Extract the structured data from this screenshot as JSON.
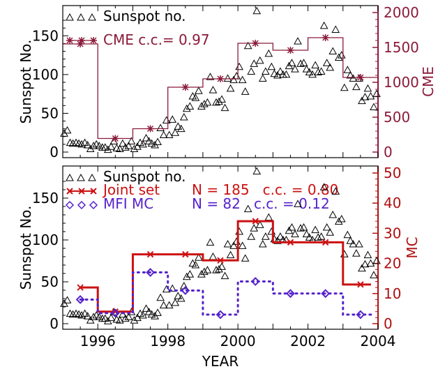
{
  "chart_data": [
    {
      "type": "line",
      "xlim": [
        1995,
        2004
      ],
      "ylim": [
        0,
        180
      ],
      "y2lim": [
        0,
        2000
      ],
      "ylabel": "Sunspot No.",
      "y2label": "CME",
      "yticks": [
        "0",
        "50",
        "100",
        "150"
      ],
      "y2ticks": [
        "0",
        "500",
        "1000",
        "1500",
        "2000"
      ],
      "legend": [
        {
          "label": "Sunspot no.",
          "color": "#000000"
        },
        {
          "label": "CME c.c.= 0.97",
          "color": "#8b1a3a"
        }
      ],
      "series": [
        {
          "name": "Sunspot no.",
          "marker": "triangle",
          "x": [
            1995.04,
            1995.13,
            1995.21,
            1995.29,
            1995.38,
            1995.46,
            1995.54,
            1995.63,
            1995.71,
            1995.79,
            1995.88,
            1995.96,
            1996.04,
            1996.13,
            1996.21,
            1996.29,
            1996.38,
            1996.46,
            1996.54,
            1996.63,
            1996.71,
            1996.79,
            1996.88,
            1996.96,
            1997.04,
            1997.13,
            1997.21,
            1997.29,
            1997.38,
            1997.46,
            1997.54,
            1997.63,
            1997.71,
            1997.79,
            1997.88,
            1997.96,
            1998.04,
            1998.13,
            1998.21,
            1998.29,
            1998.38,
            1998.46,
            1998.54,
            1998.63,
            1998.71,
            1998.79,
            1998.88,
            1998.96,
            1999.04,
            1999.13,
            1999.21,
            1999.29,
            1999.38,
            1999.46,
            1999.54,
            1999.63,
            1999.71,
            1999.79,
            1999.88,
            1999.96,
            2000.04,
            2000.13,
            2000.21,
            2000.29,
            2000.38,
            2000.46,
            2000.54,
            2000.63,
            2000.71,
            2000.79,
            2000.88,
            2000.96,
            2001.04,
            2001.13,
            2001.21,
            2001.29,
            2001.38,
            2001.46,
            2001.54,
            2001.63,
            2001.71,
            2001.79,
            2001.88,
            2001.96,
            2002.04,
            2002.13,
            2002.21,
            2002.29,
            2002.38,
            2002.46,
            2002.54,
            2002.63,
            2002.71,
            2002.79,
            2002.88,
            2002.96,
            2003.04,
            2003.13,
            2003.21,
            2003.29,
            2003.38,
            2003.46,
            2003.54,
            2003.63,
            2003.71,
            2003.79,
            2003.88,
            2003.96
          ],
          "y": [
            24,
            28,
            12,
            11,
            12,
            11,
            10,
            12,
            9,
            4,
            8,
            10,
            8,
            6,
            6,
            3,
            7,
            14,
            5,
            4,
            11,
            6,
            8,
            14,
            4,
            7,
            12,
            10,
            18,
            14,
            11,
            9,
            13,
            31,
            22,
            41,
            22,
            42,
            25,
            33,
            30,
            45,
            56,
            59,
            72,
            70,
            79,
            59,
            62,
            64,
            97,
            80,
            64,
            65,
            68,
            57,
            95,
            82,
            93,
            98,
            110,
            93,
            78,
            137,
            104,
            114,
            182,
            118,
            95,
            104,
            127,
            110,
            101,
            99,
            104,
            100,
            100,
            111,
            115,
            107,
            143,
            114,
            115,
            107,
            103,
            100,
            112,
            103,
            104,
            163,
            115,
            109,
            130,
            158,
            122,
            125,
            83,
            106,
            99,
            95,
            84,
            95,
            66,
            71,
            82,
            72,
            58,
            75
          ]
        },
        {
          "name": "CME",
          "marker": "asterisk",
          "x": [
            1995.5,
            1996.5,
            1997.5,
            1998.5,
            1999.5,
            2000.5,
            2001.5,
            2002.5,
            2003.5
          ],
          "y": [
            1550,
            195,
            335,
            930,
            1050,
            1560,
            1460,
            1640,
            1070
          ],
          "step_edges": [
            1995,
            1996,
            1997,
            1998,
            1999,
            2000,
            2001,
            2002,
            2003,
            2004
          ],
          "color": "#8b1a3a"
        }
      ]
    },
    {
      "type": "line",
      "xlim": [
        1995,
        2004
      ],
      "ylim": [
        0,
        180
      ],
      "y2lim": [
        0,
        50
      ],
      "xlabel": "YEAR",
      "ylabel": "Sunspot No.",
      "y2label": "MC",
      "xticks": [
        "1996",
        "1998",
        "2000",
        "2002",
        "2004"
      ],
      "yticks": [
        "0",
        "50",
        "100",
        "150"
      ],
      "y2ticks": [
        "0",
        "10",
        "20",
        "30",
        "40",
        "50"
      ],
      "legend": [
        {
          "label": "Sunspot no.",
          "color": "#000000"
        },
        {
          "label": "Joint set",
          "stats": "N = 185   c.c. = 0.80",
          "color": "#cc1111"
        },
        {
          "label": "MFI MC",
          "stats": "N = 82   c.c. = 0.12",
          "color": "#5522cc"
        }
      ],
      "series": [
        {
          "name": "Sunspot no.",
          "marker": "triangle",
          "same_as_top_panel": true
        },
        {
          "name": "Joint set",
          "marker": "x",
          "color": "#cc1111",
          "x": [
            1995.5,
            1996.5,
            1997.5,
            1998.5,
            1999.5,
            2000.5,
            2001.5,
            2002.5,
            2003.5
          ],
          "y": [
            12,
            4,
            23,
            23,
            21,
            34,
            27,
            27,
            13
          ],
          "step_edges": [
            1995.5,
            1996,
            1997,
            1998,
            1999,
            2000,
            2001,
            2002,
            2003,
            2003.8
          ]
        },
        {
          "name": "MFI MC",
          "marker": "diamond",
          "color": "#5522cc",
          "x": [
            1995.5,
            1996.5,
            1997.5,
            1998.5,
            1999.5,
            2000.5,
            2001.5,
            2002.5,
            2003.5
          ],
          "y": [
            8,
            3.5,
            17,
            11,
            3,
            14,
            10,
            10,
            3
          ],
          "step_edges": [
            1995.5,
            1996,
            1997,
            1998,
            1999,
            2000,
            2001,
            2002,
            2003,
            2003.8
          ]
        }
      ]
    }
  ]
}
